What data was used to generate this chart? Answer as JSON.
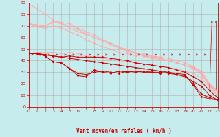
{
  "xlabel": "Vent moyen/en rafales ( km/h )",
  "xlim": [
    0,
    23
  ],
  "ylim": [
    0,
    90
  ],
  "yticks": [
    0,
    10,
    20,
    30,
    40,
    50,
    60,
    70,
    80,
    90
  ],
  "xticks": [
    0,
    1,
    2,
    3,
    4,
    5,
    6,
    7,
    8,
    9,
    10,
    11,
    12,
    13,
    14,
    15,
    16,
    17,
    18,
    19,
    20,
    21,
    22,
    23
  ],
  "bg_color": "#c6ecee",
  "grid_color": "#b0b0b0",
  "lines_light": [
    {
      "color": "#ffaaaa",
      "x": [
        0,
        1,
        2,
        3,
        4,
        5,
        6,
        7,
        8,
        9,
        10,
        11,
        12,
        13,
        14,
        15,
        16,
        17,
        18,
        19,
        20,
        21,
        22,
        23
      ],
      "y": [
        89,
        85,
        80,
        75,
        72,
        68,
        65,
        63,
        60,
        57,
        54,
        51,
        48,
        46,
        45,
        44,
        43,
        42,
        40,
        38,
        35,
        30,
        18,
        14
      ]
    },
    {
      "color": "#ffaaaa",
      "x": [
        0,
        1,
        2,
        3,
        4,
        5,
        6,
        7,
        8,
        9,
        10,
        11,
        12,
        13,
        14,
        15,
        16,
        17,
        18,
        19,
        20,
        21,
        22,
        23
      ],
      "y": [
        72,
        71,
        70,
        74,
        73,
        72,
        68,
        65,
        62,
        58,
        55,
        52,
        49,
        47,
        44,
        43,
        42,
        40,
        38,
        36,
        34,
        31,
        20,
        14
      ]
    },
    {
      "color": "#ffaaaa",
      "x": [
        0,
        1,
        2,
        3,
        4,
        5,
        6,
        7,
        8,
        9,
        10,
        11,
        12,
        13,
        14,
        15,
        16,
        17,
        18,
        19,
        20,
        21,
        22,
        23
      ],
      "y": [
        72,
        70,
        70,
        73,
        72,
        70,
        67,
        63,
        60,
        57,
        54,
        51,
        50,
        46,
        44,
        42,
        41,
        40,
        38,
        36,
        34,
        29,
        19,
        13
      ]
    },
    {
      "color": "#ffaaaa",
      "x": [
        0,
        1,
        2,
        3,
        4,
        5,
        6,
        7,
        8,
        9,
        10,
        11,
        12,
        13,
        14,
        15,
        16,
        17,
        18,
        19,
        20,
        21,
        22,
        23
      ],
      "y": [
        72,
        69,
        68,
        70,
        68,
        65,
        62,
        58,
        55,
        52,
        50,
        47,
        46,
        44,
        46,
        44,
        42,
        40,
        38,
        36,
        33,
        28,
        18,
        12
      ]
    },
    {
      "color": "#ffaaaa",
      "x": [
        0,
        1,
        2,
        3,
        4,
        5,
        6,
        7,
        8,
        9,
        10,
        11,
        12,
        13,
        14,
        15,
        16,
        17,
        18,
        19,
        20,
        21,
        22,
        23
      ],
      "y": [
        46,
        47,
        47,
        47,
        46,
        47,
        46,
        44,
        43,
        42,
        41,
        40,
        39,
        38,
        37,
        36,
        35,
        34,
        33,
        31,
        29,
        25,
        17,
        10
      ]
    }
  ],
  "lines_dark": [
    {
      "color": "#cc0000",
      "x": [
        0,
        1,
        2,
        3,
        4,
        5,
        6,
        7,
        8,
        9,
        10,
        11,
        12,
        13,
        14,
        15,
        16,
        17,
        18,
        19,
        20,
        21,
        22,
        23
      ],
      "y": [
        46,
        46,
        45,
        44,
        43,
        42,
        41,
        40,
        39,
        38,
        37,
        36,
        35,
        34,
        33,
        32,
        31,
        30,
        28,
        26,
        22,
        18,
        10,
        6
      ]
    },
    {
      "color": "#cc0000",
      "x": [
        0,
        1,
        2,
        3,
        4,
        5,
        6,
        7,
        8,
        9,
        10,
        11,
        12,
        13,
        14,
        15,
        16,
        17,
        18,
        19,
        20,
        21,
        22,
        23
      ],
      "y": [
        46,
        46,
        44,
        39,
        38,
        33,
        27,
        26,
        32,
        30,
        29,
        31,
        30,
        31,
        30,
        30,
        29,
        30,
        29,
        28,
        19,
        9,
        7,
        6
      ]
    },
    {
      "color": "#cc0000",
      "x": [
        0,
        1,
        2,
        3,
        4,
        5,
        6,
        7,
        8,
        9,
        10,
        11,
        12,
        13,
        14,
        15,
        16,
        17,
        18,
        19,
        20,
        21,
        22,
        23
      ],
      "y": [
        46,
        46,
        45,
        44,
        43,
        44,
        43,
        43,
        43,
        43,
        42,
        41,
        40,
        38,
        37,
        36,
        35,
        34,
        32,
        30,
        26,
        22,
        14,
        8
      ]
    },
    {
      "color": "#cc0000",
      "x": [
        0,
        1,
        2,
        3,
        4,
        5,
        6,
        7,
        8,
        9,
        10,
        11,
        12,
        13,
        14,
        15,
        16,
        17,
        18,
        19,
        20,
        21,
        22,
        23
      ],
      "y": [
        46,
        46,
        44,
        39,
        38,
        33,
        29,
        28,
        30,
        31,
        30,
        29,
        31,
        30,
        31,
        30,
        30,
        29,
        28,
        27,
        20,
        11,
        8,
        6
      ]
    }
  ],
  "marker": "D",
  "markersize": 1.8,
  "linewidth": 0.7
}
